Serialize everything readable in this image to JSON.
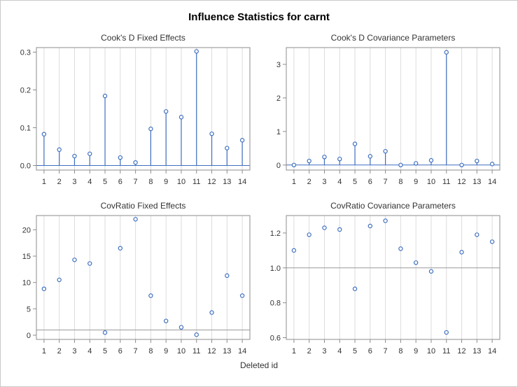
{
  "title": "Influence Statistics for carnt",
  "xlabel": "Deleted id",
  "colors": {
    "marker": "#3f6fbf",
    "stem": "#3f6fbf",
    "grid": "#dcdcdc",
    "refline": "#9a9a9a",
    "frame": "#8c8c8c"
  },
  "chart_data": [
    {
      "type": "needle",
      "title": "Cook's D Fixed Effects",
      "x": [
        1,
        2,
        3,
        4,
        5,
        6,
        7,
        8,
        9,
        10,
        11,
        12,
        13,
        14
      ],
      "values": [
        0.083,
        0.042,
        0.025,
        0.031,
        0.184,
        0.021,
        0.008,
        0.097,
        0.143,
        0.128,
        0.302,
        0.084,
        0.046,
        0.067
      ],
      "ylim": [
        -0.012,
        0.312
      ],
      "yticks": [
        "0.0",
        "0.1",
        "0.2",
        "0.3"
      ],
      "baseline": 0,
      "grid": true
    },
    {
      "type": "needle",
      "title": "Cook's D Covariance Parameters",
      "x": [
        1,
        2,
        3,
        4,
        5,
        6,
        7,
        8,
        9,
        10,
        11,
        12,
        13,
        14
      ],
      "values": [
        0.0,
        0.12,
        0.24,
        0.18,
        0.63,
        0.26,
        0.41,
        0.0,
        0.05,
        0.14,
        3.36,
        0.0,
        0.12,
        0.03
      ],
      "ylim": [
        -0.15,
        3.5
      ],
      "yticks": [
        "0",
        "1",
        "2",
        "3"
      ],
      "baseline": 0,
      "grid": true
    },
    {
      "type": "scatter",
      "title": "CovRatio Fixed Effects",
      "x": [
        1,
        2,
        3,
        4,
        5,
        6,
        7,
        8,
        9,
        10,
        11,
        12,
        13,
        14
      ],
      "values": [
        8.8,
        10.5,
        14.3,
        13.6,
        0.5,
        16.5,
        22.0,
        7.5,
        2.7,
        1.5,
        0.1,
        4.3,
        11.3,
        7.5
      ],
      "ylim": [
        -0.8,
        22.7
      ],
      "yticks": [
        "0",
        "5",
        "10",
        "15",
        "20"
      ],
      "refline": 1.0,
      "grid": true
    },
    {
      "type": "scatter",
      "title": "CovRatio Covariance Parameters",
      "x": [
        1,
        2,
        3,
        4,
        5,
        6,
        7,
        8,
        9,
        10,
        11,
        12,
        13,
        14
      ],
      "values": [
        1.1,
        1.19,
        1.23,
        1.22,
        0.88,
        1.24,
        1.27,
        1.11,
        1.03,
        0.98,
        0.63,
        1.09,
        1.19,
        1.15
      ],
      "ylim": [
        0.59,
        1.3
      ],
      "yticks": [
        "0.6",
        "0.8",
        "1.0",
        "1.2"
      ],
      "refline": 1.0,
      "grid": true
    }
  ]
}
